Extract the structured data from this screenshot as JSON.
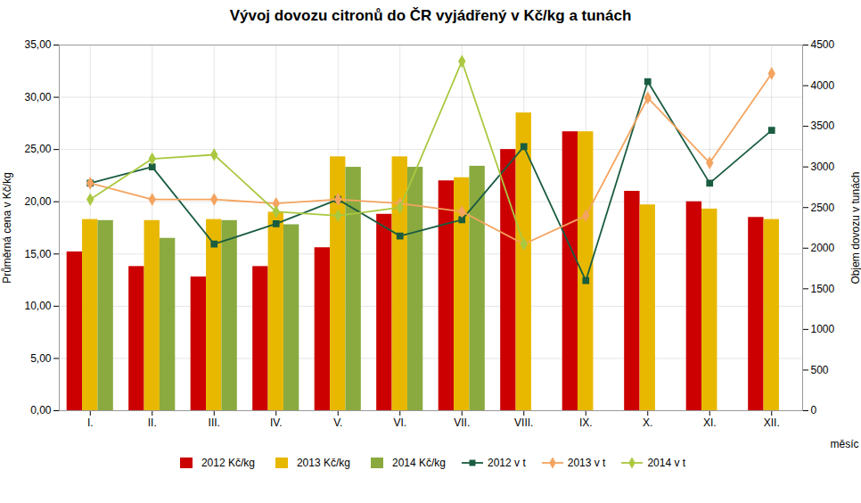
{
  "chart_data": {
    "type": "bar",
    "title": "Vývoj dovozu citronů do ČR vyjádřený v Kč/kg a tunách",
    "categories": [
      "I.",
      "II.",
      "III.",
      "IV.",
      "V.",
      "VI.",
      "VII.",
      "VIII.",
      "IX.",
      "X.",
      "XI.",
      "XII."
    ],
    "series": [
      {
        "name": "2012 Kč/kg",
        "type": "bar",
        "color": "#cc0000",
        "values": [
          15.2,
          13.8,
          12.8,
          13.8,
          15.6,
          18.8,
          22.0,
          25.0,
          26.7,
          21.0,
          20.0,
          18.5
        ]
      },
      {
        "name": "2013 Kč/kg",
        "type": "bar",
        "color": "#e8b800",
        "values": [
          18.3,
          18.2,
          18.3,
          19.0,
          24.3,
          24.3,
          22.3,
          28.5,
          26.7,
          19.7,
          19.3,
          18.3
        ]
      },
      {
        "name": "2014 Kč/kg",
        "type": "bar",
        "color": "#8aaa40",
        "values": [
          18.2,
          16.5,
          18.2,
          17.8,
          23.3,
          23.3,
          23.4,
          null,
          null,
          null,
          null,
          null
        ]
      },
      {
        "name": "2012 v t",
        "type": "line",
        "axis": "y2",
        "color": "#1a5c40",
        "marker": "square",
        "values": [
          2800,
          3000,
          2050,
          2300,
          2600,
          2150,
          2350,
          3250,
          1600,
          4050,
          2800,
          3450
        ]
      },
      {
        "name": "2013 v t",
        "type": "line",
        "axis": "y2",
        "color": "#f4a460",
        "marker": "diamond",
        "values": [
          2800,
          2600,
          2600,
          2550,
          2600,
          2550,
          2450,
          2050,
          2400,
          3850,
          3050,
          4150
        ]
      },
      {
        "name": "2014 v t",
        "type": "line",
        "axis": "y2",
        "color": "#aac840",
        "marker": "diamond",
        "values": [
          2600,
          3100,
          3150,
          2450,
          2400,
          2500,
          4300,
          2050,
          null,
          null,
          null,
          null
        ]
      }
    ],
    "xlabel": "měsíc",
    "ylabel": "Průměrná cena v Kč/kg",
    "y2label": "Objem dovozu v tunách",
    "ylim": [
      0,
      35
    ],
    "yticks": [
      {
        "value": 0,
        "label": "0,00"
      },
      {
        "value": 5,
        "label": "5,00"
      },
      {
        "value": 10,
        "label": "10,00"
      },
      {
        "value": 15,
        "label": "15,00"
      },
      {
        "value": 20,
        "label": "20,00"
      },
      {
        "value": 25,
        "label": "25,00"
      },
      {
        "value": 30,
        "label": "30,00"
      },
      {
        "value": 35,
        "label": "35,00"
      }
    ],
    "y2lim": [
      0,
      4500
    ],
    "y2ticks": [
      0,
      500,
      1000,
      1500,
      2000,
      2500,
      3000,
      3500,
      4000,
      4500
    ],
    "grid": true,
    "legend": "bottom"
  }
}
